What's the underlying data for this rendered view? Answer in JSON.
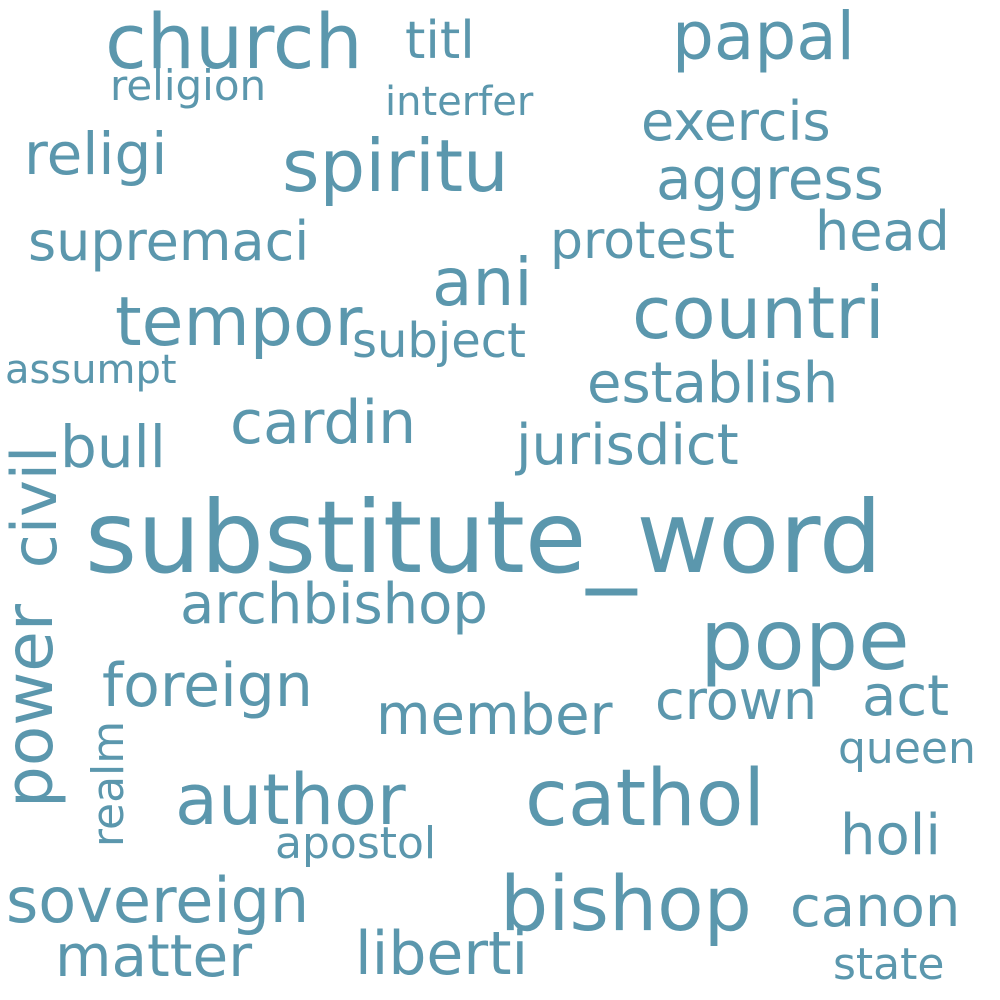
{
  "color": "#5b97ad",
  "words": [
    {
      "text": "substitute_word"
    },
    {
      "text": "pope"
    },
    {
      "text": "cathol"
    },
    {
      "text": "bishop"
    },
    {
      "text": "church"
    },
    {
      "text": "spiritu"
    },
    {
      "text": "countri"
    },
    {
      "text": "author"
    },
    {
      "text": "tempor"
    },
    {
      "text": "papal"
    },
    {
      "text": "ani"
    },
    {
      "text": "sovereign"
    },
    {
      "text": "foreign"
    },
    {
      "text": "cardin"
    },
    {
      "text": "religi"
    },
    {
      "text": "matter"
    },
    {
      "text": "liberti"
    },
    {
      "text": "aggress"
    },
    {
      "text": "establish"
    },
    {
      "text": "jurisdict"
    },
    {
      "text": "archbishop"
    },
    {
      "text": "member"
    },
    {
      "text": "crown"
    },
    {
      "text": "holi"
    },
    {
      "text": "canon"
    },
    {
      "text": "bull"
    },
    {
      "text": "supremaci"
    },
    {
      "text": "exercis"
    },
    {
      "text": "protest"
    },
    {
      "text": "act"
    },
    {
      "text": "titl"
    },
    {
      "text": "head"
    },
    {
      "text": "subject"
    },
    {
      "text": "queen"
    },
    {
      "text": "apostol"
    },
    {
      "text": "state"
    },
    {
      "text": "religion"
    },
    {
      "text": "interfer"
    },
    {
      "text": "assumpt"
    },
    {
      "text": "power"
    },
    {
      "text": "civil"
    },
    {
      "text": "realm"
    }
  ]
}
